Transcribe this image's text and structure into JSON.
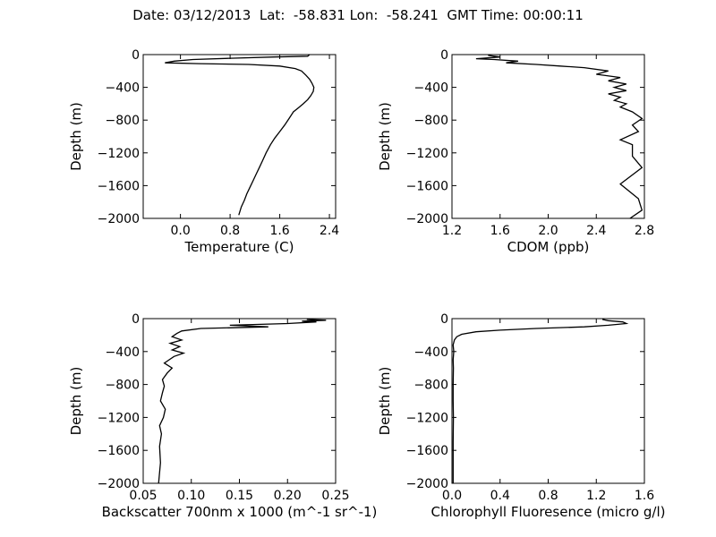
{
  "figure": {
    "title": "Date: 03/12/2013  Lat:  -58.831 Lon:  -58.241  GMT Time: 00:00:11"
  },
  "chart_data": [
    {
      "type": "line",
      "xlabel": "Temperature (C)",
      "ylabel": "Depth (m)",
      "xlim": [
        -0.6,
        2.5
      ],
      "ylim": [
        -2000,
        0
      ],
      "xticks": [
        0.0,
        0.8,
        1.6,
        2.4
      ],
      "xtick_labels": [
        "0.0",
        "0.8",
        "1.6",
        "2.4"
      ],
      "yticks": [
        0,
        -400,
        -800,
        -1200,
        -1600,
        -2000
      ],
      "ytick_labels": [
        "0",
        "−400",
        "−800",
        "−1200",
        "−1600",
        "−2000"
      ],
      "grid": false,
      "series": [
        {
          "x": [
            2.08,
            2.05,
            1.5,
            0.8,
            0.2,
            -0.1,
            -0.25,
            0.3,
            1.1,
            1.6,
            1.85,
            1.95,
            2.02,
            2.08,
            2.12,
            2.15,
            2.14,
            2.1,
            2.05,
            1.98,
            1.9,
            1.82,
            1.75,
            1.68,
            1.6,
            1.52,
            1.45,
            1.38,
            1.32,
            1.27,
            1.22,
            1.17,
            1.12,
            1.07,
            1.03,
            0.98,
            0.94
          ],
          "y": [
            0,
            -20,
            -30,
            -45,
            -60,
            -80,
            -100,
            -110,
            -120,
            -140,
            -170,
            -200,
            -250,
            -300,
            -350,
            -400,
            -450,
            -500,
            -550,
            -600,
            -650,
            -700,
            -780,
            -860,
            -940,
            -1020,
            -1100,
            -1200,
            -1300,
            -1380,
            -1460,
            -1540,
            -1620,
            -1700,
            -1780,
            -1860,
            -1960
          ]
        }
      ]
    },
    {
      "type": "line",
      "xlabel": "CDOM (ppb)",
      "ylabel": "Depth (m)",
      "xlim": [
        1.2,
        2.8
      ],
      "ylim": [
        -2000,
        0
      ],
      "xticks": [
        1.2,
        1.6,
        2.0,
        2.4,
        2.8
      ],
      "xtick_labels": [
        "1.2",
        "1.6",
        "2.0",
        "2.4",
        "2.8"
      ],
      "yticks": [
        0,
        -400,
        -800,
        -1200,
        -1600,
        -2000
      ],
      "ytick_labels": [
        "0",
        "−400",
        "−800",
        "−1200",
        "−1600",
        "−2000"
      ],
      "grid": false,
      "series": [
        {
          "x": [
            1.5,
            1.6,
            1.4,
            1.55,
            1.75,
            1.65,
            1.9,
            2.1,
            2.3,
            2.5,
            2.4,
            2.6,
            2.5,
            2.65,
            2.55,
            2.65,
            2.5,
            2.6,
            2.55,
            2.65,
            2.6,
            2.7,
            2.78,
            2.7,
            2.75,
            2.6,
            2.7,
            2.7,
            2.78,
            2.6,
            2.75,
            2.78,
            2.68
          ],
          "y": [
            -10,
            -30,
            -50,
            -60,
            -80,
            -100,
            -120,
            -140,
            -160,
            -200,
            -240,
            -280,
            -320,
            -360,
            -400,
            -440,
            -480,
            -520,
            -560,
            -600,
            -640,
            -700,
            -780,
            -860,
            -940,
            -1040,
            -1100,
            -1240,
            -1380,
            -1580,
            -1760,
            -1900,
            -2000
          ]
        }
      ]
    },
    {
      "type": "line",
      "xlabel": "Backscatter 700nm x 1000 (m^-1 sr^-1)",
      "ylabel": "Depth (m)",
      "xlim": [
        0.05,
        0.25
      ],
      "ylim": [
        -2000,
        0
      ],
      "xticks": [
        0.05,
        0.1,
        0.15,
        0.2,
        0.25
      ],
      "xtick_labels": [
        "0.05",
        "0.10",
        "0.15",
        "0.20",
        "0.25"
      ],
      "yticks": [
        0,
        -400,
        -800,
        -1200,
        -1600,
        -2000
      ],
      "ytick_labels": [
        "0",
        "−400",
        "−800",
        "−1200",
        "−1600",
        "−2000"
      ],
      "grid": false,
      "series": [
        {
          "x": [
            0.22,
            0.24,
            0.215,
            0.23,
            0.2,
            0.14,
            0.18,
            0.11,
            0.09,
            0.085,
            0.08,
            0.09,
            0.078,
            0.088,
            0.08,
            0.092,
            0.082,
            0.077,
            0.072,
            0.08,
            0.075,
            0.07,
            0.072,
            0.07,
            0.068,
            0.073,
            0.071,
            0.067,
            0.069,
            0.067,
            0.068,
            0.066
          ],
          "y": [
            -10,
            -20,
            -30,
            -40,
            -60,
            -80,
            -100,
            -120,
            -150,
            -180,
            -220,
            -260,
            -300,
            -340,
            -380,
            -420,
            -460,
            -500,
            -540,
            -600,
            -660,
            -740,
            -820,
            -900,
            -1000,
            -1100,
            -1200,
            -1300,
            -1400,
            -1550,
            -1750,
            -2000
          ]
        }
      ]
    },
    {
      "type": "line",
      "xlabel": "Chlorophyll Fluoresence (micro g/l)",
      "ylabel": "Depth (m)",
      "xlim": [
        0.0,
        1.6
      ],
      "ylim": [
        -2000,
        0
      ],
      "xticks": [
        0.0,
        0.4,
        0.8,
        1.2,
        1.6
      ],
      "xtick_labels": [
        "0.0",
        "0.4",
        "0.8",
        "1.2",
        "1.6"
      ],
      "yticks": [
        0,
        -400,
        -800,
        -1200,
        -1600,
        -2000
      ],
      "ytick_labels": [
        "0",
        "−400",
        "−800",
        "−1200",
        "−1600",
        "−2000"
      ],
      "grid": false,
      "series": [
        {
          "x": [
            1.25,
            1.3,
            1.42,
            1.45,
            1.3,
            1.1,
            0.7,
            0.4,
            0.2,
            0.08,
            0.04,
            0.02,
            0.01,
            0.015,
            0.01,
            0.012,
            0.01,
            0.01,
            0.012,
            0.01,
            0.01,
            0.01
          ],
          "y": [
            -10,
            -25,
            -40,
            -60,
            -80,
            -100,
            -120,
            -140,
            -160,
            -190,
            -220,
            -260,
            -320,
            -400,
            -500,
            -600,
            -800,
            -1000,
            -1200,
            -1500,
            -1800,
            -2000
          ]
        }
      ]
    }
  ]
}
